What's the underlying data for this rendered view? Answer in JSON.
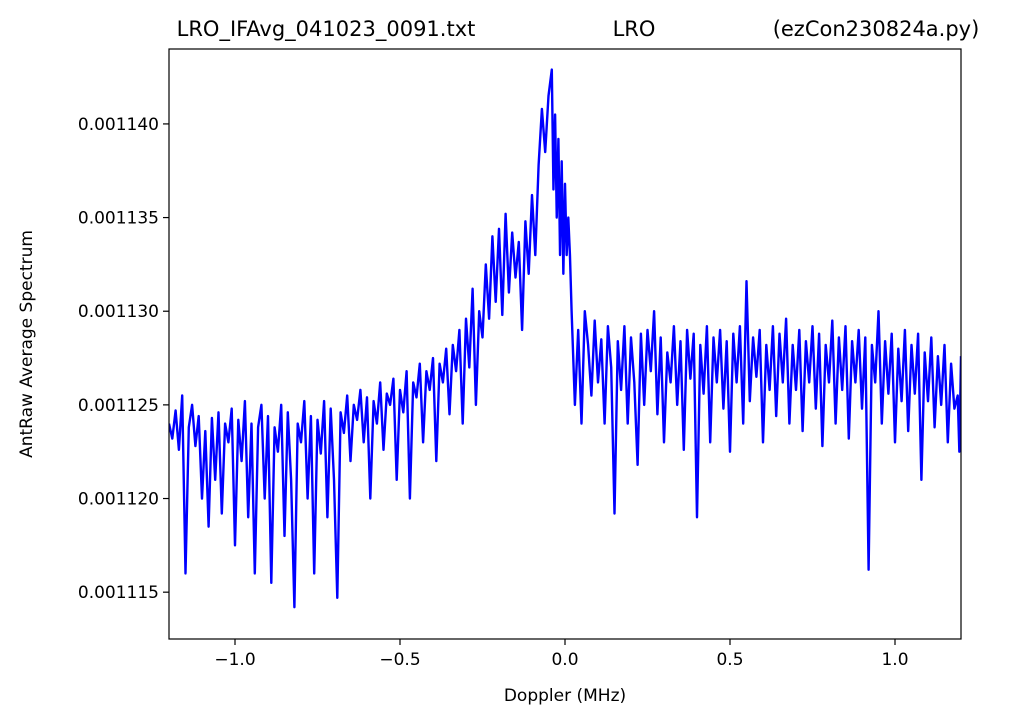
{
  "chart_data": {
    "type": "line",
    "title_parts": {
      "left": "LRO_IFAvg_041023_0091.txt",
      "center": "LRO",
      "right": "(ezCon230824a.py)"
    },
    "xlabel": "Doppler (MHz)",
    "ylabel": "AntRaw Average Spectrum",
    "xlim": [
      -1.2,
      1.2
    ],
    "ylim": [
      0.0011125,
      0.001144
    ],
    "xticks": [
      -1.0,
      -0.5,
      0.0,
      0.5,
      1.0
    ],
    "xtick_labels": [
      "−1.0",
      "−0.5",
      "0.0",
      "0.5",
      "1.0"
    ],
    "yticks": [
      0.001115,
      0.00112,
      0.001125,
      0.00113,
      0.001135,
      0.00114
    ],
    "ytick_labels": [
      "0.001115",
      "0.001120",
      "0.001125",
      "0.001130",
      "0.001135",
      "0.001140"
    ],
    "grid": false,
    "line_color": "#0000ff",
    "series": [
      {
        "points": [
          [
            -1.2,
            0.001124
          ],
          [
            -1.19,
            0.0011232
          ],
          [
            -1.18,
            0.0011247
          ],
          [
            -1.17,
            0.0011226
          ],
          [
            -1.16,
            0.0011255
          ],
          [
            -1.15,
            0.001116
          ],
          [
            -1.14,
            0.0011238
          ],
          [
            -1.13,
            0.001125
          ],
          [
            -1.12,
            0.0011228
          ],
          [
            -1.11,
            0.0011244
          ],
          [
            -1.1,
            0.00112
          ],
          [
            -1.09,
            0.0011236
          ],
          [
            -1.08,
            0.0011185
          ],
          [
            -1.07,
            0.0011243
          ],
          [
            -1.06,
            0.001121
          ],
          [
            -1.05,
            0.0011246
          ],
          [
            -1.04,
            0.0011192
          ],
          [
            -1.03,
            0.001124
          ],
          [
            -1.02,
            0.001123
          ],
          [
            -1.01,
            0.0011248
          ],
          [
            -1.0,
            0.0011175
          ],
          [
            -0.99,
            0.0011242
          ],
          [
            -0.98,
            0.001122
          ],
          [
            -0.97,
            0.0011252
          ],
          [
            -0.96,
            0.001119
          ],
          [
            -0.95,
            0.001124
          ],
          [
            -0.94,
            0.001116
          ],
          [
            -0.93,
            0.0011238
          ],
          [
            -0.92,
            0.001125
          ],
          [
            -0.91,
            0.00112
          ],
          [
            -0.9,
            0.0011244
          ],
          [
            -0.89,
            0.0011155
          ],
          [
            -0.88,
            0.0011238
          ],
          [
            -0.87,
            0.0011225
          ],
          [
            -0.86,
            0.001125
          ],
          [
            -0.85,
            0.001118
          ],
          [
            -0.84,
            0.0011246
          ],
          [
            -0.83,
            0.001121
          ],
          [
            -0.82,
            0.0011142
          ],
          [
            -0.81,
            0.001124
          ],
          [
            -0.8,
            0.001123
          ],
          [
            -0.79,
            0.0011252
          ],
          [
            -0.78,
            0.00112
          ],
          [
            -0.77,
            0.0011244
          ],
          [
            -0.76,
            0.001116
          ],
          [
            -0.75,
            0.0011242
          ],
          [
            -0.74,
            0.0011224
          ],
          [
            -0.73,
            0.0011252
          ],
          [
            -0.72,
            0.001119
          ],
          [
            -0.71,
            0.0011248
          ],
          [
            -0.7,
            0.001121
          ],
          [
            -0.69,
            0.0011147
          ],
          [
            -0.68,
            0.0011246
          ],
          [
            -0.67,
            0.0011235
          ],
          [
            -0.66,
            0.0011255
          ],
          [
            -0.65,
            0.001122
          ],
          [
            -0.64,
            0.001125
          ],
          [
            -0.63,
            0.0011242
          ],
          [
            -0.62,
            0.0011258
          ],
          [
            -0.61,
            0.001123
          ],
          [
            -0.6,
            0.0011254
          ],
          [
            -0.59,
            0.00112
          ],
          [
            -0.58,
            0.0011252
          ],
          [
            -0.57,
            0.001124
          ],
          [
            -0.56,
            0.0011262
          ],
          [
            -0.55,
            0.0011226
          ],
          [
            -0.54,
            0.0011256
          ],
          [
            -0.53,
            0.001125
          ],
          [
            -0.52,
            0.0011264
          ],
          [
            -0.51,
            0.001121
          ],
          [
            -0.5,
            0.0011258
          ],
          [
            -0.49,
            0.0011246
          ],
          [
            -0.48,
            0.0011268
          ],
          [
            -0.47,
            0.00112
          ],
          [
            -0.46,
            0.0011262
          ],
          [
            -0.45,
            0.0011254
          ],
          [
            -0.44,
            0.0011272
          ],
          [
            -0.43,
            0.001123
          ],
          [
            -0.42,
            0.0011268
          ],
          [
            -0.41,
            0.0011258
          ],
          [
            -0.4,
            0.0011275
          ],
          [
            -0.39,
            0.001122
          ],
          [
            -0.38,
            0.0011272
          ],
          [
            -0.37,
            0.0011262
          ],
          [
            -0.36,
            0.001128
          ],
          [
            -0.35,
            0.0011245
          ],
          [
            -0.34,
            0.0011282
          ],
          [
            -0.33,
            0.0011268
          ],
          [
            -0.32,
            0.001129
          ],
          [
            -0.31,
            0.001124
          ],
          [
            -0.3,
            0.0011296
          ],
          [
            -0.29,
            0.001127
          ],
          [
            -0.28,
            0.0011312
          ],
          [
            -0.27,
            0.001125
          ],
          [
            -0.26,
            0.00113
          ],
          [
            -0.25,
            0.0011286
          ],
          [
            -0.24,
            0.0011325
          ],
          [
            -0.23,
            0.0011296
          ],
          [
            -0.22,
            0.001134
          ],
          [
            -0.21,
            0.0011305
          ],
          [
            -0.2,
            0.0011344
          ],
          [
            -0.19,
            0.0011298
          ],
          [
            -0.18,
            0.0011352
          ],
          [
            -0.17,
            0.001131
          ],
          [
            -0.16,
            0.0011342
          ],
          [
            -0.15,
            0.0011318
          ],
          [
            -0.14,
            0.0011337
          ],
          [
            -0.13,
            0.001129
          ],
          [
            -0.12,
            0.0011348
          ],
          [
            -0.11,
            0.001132
          ],
          [
            -0.1,
            0.0011362
          ],
          [
            -0.09,
            0.001133
          ],
          [
            -0.08,
            0.0011378
          ],
          [
            -0.07,
            0.0011408
          ],
          [
            -0.06,
            0.0011385
          ],
          [
            -0.05,
            0.0011415
          ],
          [
            -0.04,
            0.0011429
          ],
          [
            -0.035,
            0.0011365
          ],
          [
            -0.03,
            0.0011405
          ],
          [
            -0.025,
            0.001135
          ],
          [
            -0.02,
            0.0011392
          ],
          [
            -0.015,
            0.001133
          ],
          [
            -0.01,
            0.001138
          ],
          [
            -0.005,
            0.001132
          ],
          [
            0.0,
            0.0011368
          ],
          [
            0.005,
            0.001133
          ],
          [
            0.01,
            0.001135
          ],
          [
            0.015,
            0.001133
          ],
          [
            0.02,
            0.00113
          ],
          [
            0.03,
            0.001125
          ],
          [
            0.04,
            0.001129
          ],
          [
            0.05,
            0.001124
          ],
          [
            0.06,
            0.00113
          ],
          [
            0.07,
            0.0011282
          ],
          [
            0.08,
            0.0011255
          ],
          [
            0.09,
            0.0011295
          ],
          [
            0.1,
            0.0011262
          ],
          [
            0.11,
            0.0011285
          ],
          [
            0.12,
            0.001124
          ],
          [
            0.13,
            0.0011292
          ],
          [
            0.14,
            0.001127
          ],
          [
            0.15,
            0.0011192
          ],
          [
            0.16,
            0.0011284
          ],
          [
            0.17,
            0.0011258
          ],
          [
            0.18,
            0.0011292
          ],
          [
            0.19,
            0.001124
          ],
          [
            0.2,
            0.0011286
          ],
          [
            0.21,
            0.0011262
          ],
          [
            0.22,
            0.0011218
          ],
          [
            0.23,
            0.0011288
          ],
          [
            0.24,
            0.001125
          ],
          [
            0.25,
            0.001129
          ],
          [
            0.26,
            0.0011268
          ],
          [
            0.27,
            0.00113
          ],
          [
            0.28,
            0.0011245
          ],
          [
            0.29,
            0.0011286
          ],
          [
            0.3,
            0.001123
          ],
          [
            0.31,
            0.0011278
          ],
          [
            0.32,
            0.0011262
          ],
          [
            0.33,
            0.0011292
          ],
          [
            0.34,
            0.001125
          ],
          [
            0.35,
            0.0011284
          ],
          [
            0.36,
            0.0011226
          ],
          [
            0.37,
            0.001129
          ],
          [
            0.38,
            0.0011264
          ],
          [
            0.39,
            0.0011288
          ],
          [
            0.4,
            0.001119
          ],
          [
            0.41,
            0.0011282
          ],
          [
            0.42,
            0.0011256
          ],
          [
            0.43,
            0.0011292
          ],
          [
            0.44,
            0.001123
          ],
          [
            0.45,
            0.0011286
          ],
          [
            0.46,
            0.0011262
          ],
          [
            0.47,
            0.001129
          ],
          [
            0.48,
            0.0011248
          ],
          [
            0.49,
            0.0011284
          ],
          [
            0.5,
            0.0011225
          ],
          [
            0.51,
            0.0011288
          ],
          [
            0.52,
            0.0011262
          ],
          [
            0.53,
            0.0011292
          ],
          [
            0.54,
            0.001124
          ],
          [
            0.55,
            0.0011316
          ],
          [
            0.56,
            0.0011252
          ],
          [
            0.57,
            0.0011286
          ],
          [
            0.58,
            0.0011265
          ],
          [
            0.59,
            0.001129
          ],
          [
            0.6,
            0.001123
          ],
          [
            0.61,
            0.0011282
          ],
          [
            0.62,
            0.0011258
          ],
          [
            0.63,
            0.0011292
          ],
          [
            0.64,
            0.0011244
          ],
          [
            0.65,
            0.0011288
          ],
          [
            0.66,
            0.0011262
          ],
          [
            0.67,
            0.0011296
          ],
          [
            0.68,
            0.001124
          ],
          [
            0.69,
            0.0011282
          ],
          [
            0.7,
            0.0011258
          ],
          [
            0.71,
            0.001129
          ],
          [
            0.72,
            0.0011236
          ],
          [
            0.73,
            0.0011284
          ],
          [
            0.74,
            0.0011262
          ],
          [
            0.75,
            0.0011292
          ],
          [
            0.76,
            0.0011248
          ],
          [
            0.77,
            0.0011288
          ],
          [
            0.78,
            0.0011228
          ],
          [
            0.79,
            0.0011282
          ],
          [
            0.8,
            0.0011262
          ],
          [
            0.81,
            0.0011295
          ],
          [
            0.82,
            0.001124
          ],
          [
            0.83,
            0.0011286
          ],
          [
            0.84,
            0.0011258
          ],
          [
            0.85,
            0.0011292
          ],
          [
            0.86,
            0.0011232
          ],
          [
            0.87,
            0.0011284
          ],
          [
            0.88,
            0.0011262
          ],
          [
            0.89,
            0.001129
          ],
          [
            0.9,
            0.0011248
          ],
          [
            0.91,
            0.0011286
          ],
          [
            0.92,
            0.0011162
          ],
          [
            0.93,
            0.0011282
          ],
          [
            0.94,
            0.0011262
          ],
          [
            0.95,
            0.00113
          ],
          [
            0.96,
            0.001124
          ],
          [
            0.97,
            0.0011284
          ],
          [
            0.98,
            0.0011256
          ],
          [
            0.99,
            0.0011288
          ],
          [
            1.0,
            0.001123
          ],
          [
            1.01,
            0.001128
          ],
          [
            1.02,
            0.0011252
          ],
          [
            1.03,
            0.001129
          ],
          [
            1.04,
            0.0011236
          ],
          [
            1.05,
            0.0011282
          ],
          [
            1.06,
            0.0011256
          ],
          [
            1.07,
            0.0011288
          ],
          [
            1.08,
            0.001121
          ],
          [
            1.09,
            0.0011278
          ],
          [
            1.1,
            0.0011252
          ],
          [
            1.11,
            0.0011286
          ],
          [
            1.12,
            0.0011238
          ],
          [
            1.13,
            0.0011276
          ],
          [
            1.14,
            0.001125
          ],
          [
            1.15,
            0.0011282
          ],
          [
            1.16,
            0.001123
          ],
          [
            1.17,
            0.0011272
          ],
          [
            1.18,
            0.0011248
          ],
          [
            1.19,
            0.0011255
          ],
          [
            1.195,
            0.0011225
          ],
          [
            1.2,
            0.0011276
          ]
        ]
      }
    ]
  }
}
